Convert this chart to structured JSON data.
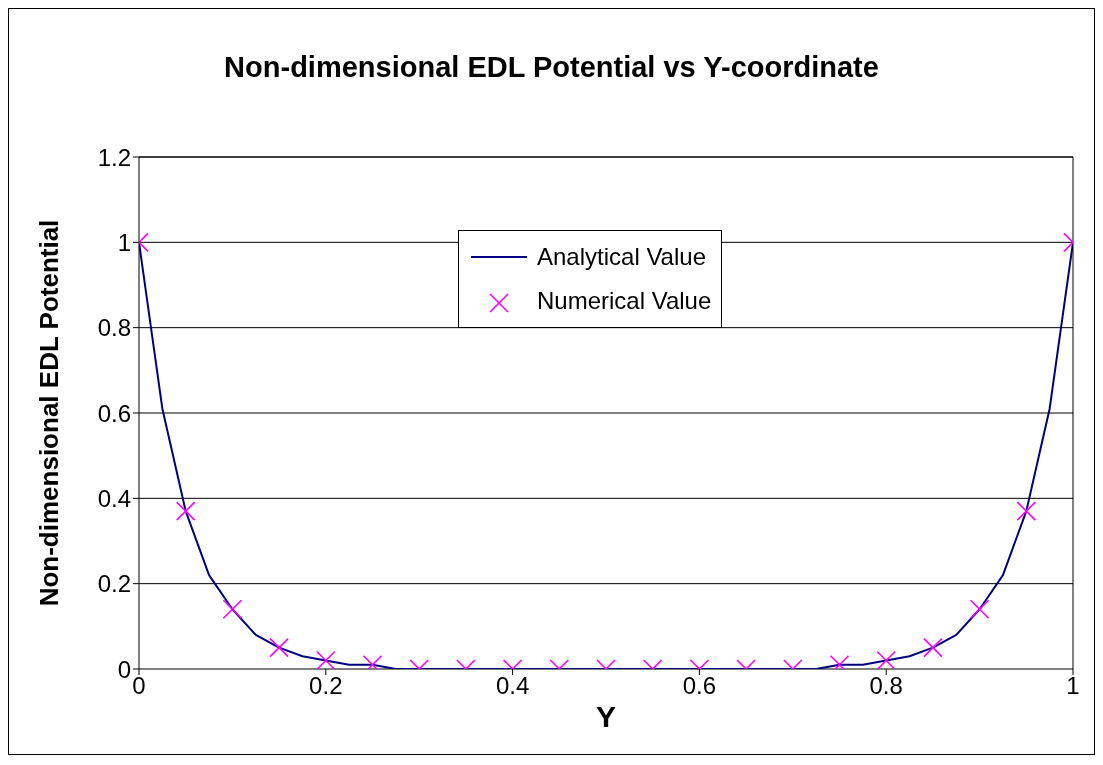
{
  "chart_data": {
    "type": "line",
    "title": "Non-dimensional EDL Potential vs Y-coordinate",
    "xlabel": "Y",
    "ylabel": "Non-dimensional EDL Potential",
    "xlim": [
      0,
      1
    ],
    "xticks": [
      0,
      0.2,
      0.4,
      0.6,
      0.8,
      1
    ],
    "ylim": [
      0,
      1.2
    ],
    "yticks": [
      0,
      0.2,
      0.4,
      0.6,
      0.8,
      1,
      1.2
    ],
    "grid": "y",
    "legend": "top",
    "series": [
      {
        "name": "Analytical Value",
        "color": "#000080",
        "marker": "none",
        "line_style": "solid",
        "x": [
          0,
          0.025,
          0.05,
          0.075,
          0.1,
          0.125,
          0.15,
          0.175,
          0.2,
          0.225,
          0.25,
          0.275,
          0.3,
          0.325,
          0.35,
          0.375,
          0.4,
          0.425,
          0.45,
          0.475,
          0.5,
          0.525,
          0.55,
          0.575,
          0.6,
          0.625,
          0.65,
          0.675,
          0.7,
          0.725,
          0.75,
          0.775,
          0.8,
          0.825,
          0.85,
          0.875,
          0.9,
          0.925,
          0.95,
          0.975,
          1
        ],
        "values": [
          1,
          0.61,
          0.37,
          0.22,
          0.14,
          0.08,
          0.05,
          0.03,
          0.02,
          0.01,
          0.01,
          0,
          0,
          0,
          0,
          0,
          0,
          0,
          0,
          0,
          0,
          0,
          0,
          0,
          0,
          0,
          0,
          0,
          0,
          0,
          0.01,
          0.01,
          0.02,
          0.03,
          0.05,
          0.08,
          0.14,
          0.22,
          0.37,
          0.61,
          1
        ]
      },
      {
        "name": "Numerical Value",
        "type": "scatter",
        "color": "#ff00ff",
        "marker": "cross",
        "x": [
          0,
          0.05,
          0.1,
          0.15,
          0.2,
          0.25,
          0.3,
          0.35,
          0.4,
          0.45,
          0.5,
          0.55,
          0.6,
          0.65,
          0.7,
          0.75,
          0.8,
          0.85,
          0.9,
          0.95,
          1
        ],
        "values": [
          1,
          0.37,
          0.14,
          0.05,
          0.02,
          0.01,
          0,
          0,
          0,
          0,
          0,
          0,
          0,
          0,
          0,
          0.01,
          0.02,
          0.05,
          0.14,
          0.37,
          1
        ]
      }
    ]
  }
}
